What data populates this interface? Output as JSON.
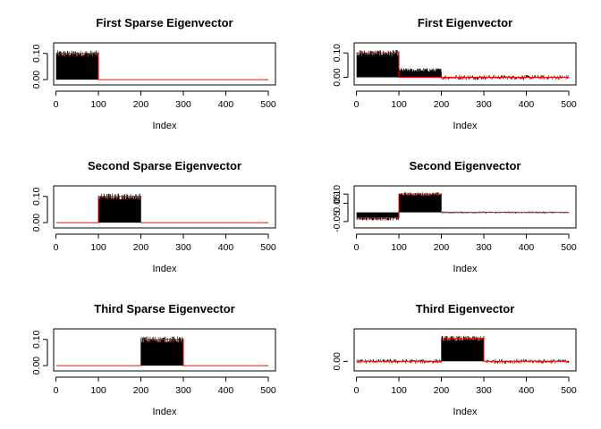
{
  "chart_data": [
    {
      "type": "line",
      "title": "First Sparse Eigenvector",
      "xlabel": "Index",
      "xlim": [
        1,
        500
      ],
      "ylim": [
        -0.01,
        0.13
      ],
      "xticks": [
        "0",
        "100",
        "200",
        "300",
        "400",
        "500"
      ],
      "yticks": [
        "0.00",
        "0.10"
      ],
      "ytick_values": [
        0,
        0.1
      ],
      "series": [
        {
          "color": "#000000",
          "style": "spikes"
        },
        {
          "color": "#ff0000",
          "style": "true-signal"
        }
      ],
      "blocks": [
        {
          "from": 1,
          "to": 100,
          "value": 0.1
        },
        {
          "from": 101,
          "to": 500,
          "value": 0
        }
      ],
      "noise": [
        0.012,
        0
      ]
    },
    {
      "type": "line",
      "title": "First Eigenvector",
      "xlabel": "Index",
      "xlim": [
        1,
        500
      ],
      "ylim": [
        -0.02,
        0.13
      ],
      "xticks": [
        "0",
        "100",
        "200",
        "300",
        "400",
        "500"
      ],
      "yticks": [
        "0.00",
        "0.10"
      ],
      "ytick_values": [
        0,
        0.1
      ],
      "series": [
        {
          "color": "#000000",
          "style": "spikes"
        },
        {
          "color": "#ff0000",
          "style": "true-signal"
        }
      ],
      "blocks": [
        {
          "from": 1,
          "to": 100,
          "value": 0.1
        },
        {
          "from": 101,
          "to": 200,
          "value": 0
        },
        {
          "from": 201,
          "to": 500,
          "value": 0
        }
      ],
      "spike_means": [
        0.1,
        0.03,
        0
      ],
      "noise": [
        0.012,
        0.008,
        0.01
      ]
    },
    {
      "type": "line",
      "title": "Second Sparse Eigenvector",
      "xlabel": "Index",
      "xlim": [
        1,
        500
      ],
      "ylim": [
        -0.01,
        0.13
      ],
      "xticks": [
        "0",
        "100",
        "200",
        "300",
        "400",
        "500"
      ],
      "yticks": [
        "0.00",
        "0.10"
      ],
      "ytick_values": [
        0,
        0.1
      ],
      "series": [
        {
          "color": "#000000",
          "style": "spikes"
        },
        {
          "color": "#ff0000",
          "style": "true-signal"
        }
      ],
      "blocks": [
        {
          "from": 1,
          "to": 100,
          "value": 0
        },
        {
          "from": 101,
          "to": 200,
          "value": 0.1
        },
        {
          "from": 201,
          "to": 500,
          "value": 0
        }
      ],
      "noise": [
        0,
        0.012,
        0
      ]
    },
    {
      "type": "line",
      "title": "Second Eigenvector",
      "xlabel": "Index",
      "xlim": [
        1,
        500
      ],
      "ylim": [
        -0.07,
        0.13
      ],
      "xticks": [
        "0",
        "100",
        "200",
        "300",
        "400",
        "500"
      ],
      "yticks": [
        "-0.05",
        "0.05",
        "0.10"
      ],
      "ytick_values": [
        -0.05,
        0.05,
        0.1
      ],
      "series": [
        {
          "color": "#000000",
          "style": "spikes"
        },
        {
          "color": "#ff0000",
          "style": "true-signal"
        }
      ],
      "blocks": [
        {
          "from": 1,
          "to": 100,
          "value": -0.03
        },
        {
          "from": 101,
          "to": 200,
          "value": 0.1
        },
        {
          "from": 201,
          "to": 500,
          "value": 0
        }
      ],
      "spike_means": [
        -0.035,
        0.1,
        0
      ],
      "noise": [
        0.01,
        0.01,
        0.006
      ]
    },
    {
      "type": "line",
      "title": "Third Sparse Eigenvector",
      "xlabel": "Index",
      "xlim": [
        1,
        500
      ],
      "ylim": [
        -0.01,
        0.13
      ],
      "xticks": [
        "0",
        "100",
        "200",
        "300",
        "400",
        "500"
      ],
      "yticks": [
        "0.00",
        "0.10"
      ],
      "ytick_values": [
        0,
        0.1
      ],
      "series": [
        {
          "color": "#000000",
          "style": "spikes"
        },
        {
          "color": "#ff0000",
          "style": "true-signal"
        }
      ],
      "blocks": [
        {
          "from": 1,
          "to": 200,
          "value": 0
        },
        {
          "from": 201,
          "to": 300,
          "value": 0.1
        },
        {
          "from": 301,
          "to": 500,
          "value": 0
        }
      ],
      "noise": [
        0,
        0.012,
        0
      ]
    },
    {
      "type": "line",
      "title": "Third Eigenvector",
      "xlabel": "Index",
      "xlim": [
        1,
        500
      ],
      "ylim": [
        -0.03,
        0.13
      ],
      "xticks": [
        "0",
        "100",
        "200",
        "300",
        "400",
        "500"
      ],
      "yticks": [
        "0.00"
      ],
      "ytick_values": [
        0
      ],
      "series": [
        {
          "color": "#000000",
          "style": "spikes"
        },
        {
          "color": "#ff0000",
          "style": "true-signal"
        }
      ],
      "blocks": [
        {
          "from": 1,
          "to": 200,
          "value": 0
        },
        {
          "from": 201,
          "to": 300,
          "value": 0.1
        },
        {
          "from": 301,
          "to": 500,
          "value": 0
        }
      ],
      "spike_means": [
        0,
        0.1,
        0
      ],
      "noise": [
        0.01,
        0.012,
        0.01
      ]
    }
  ]
}
